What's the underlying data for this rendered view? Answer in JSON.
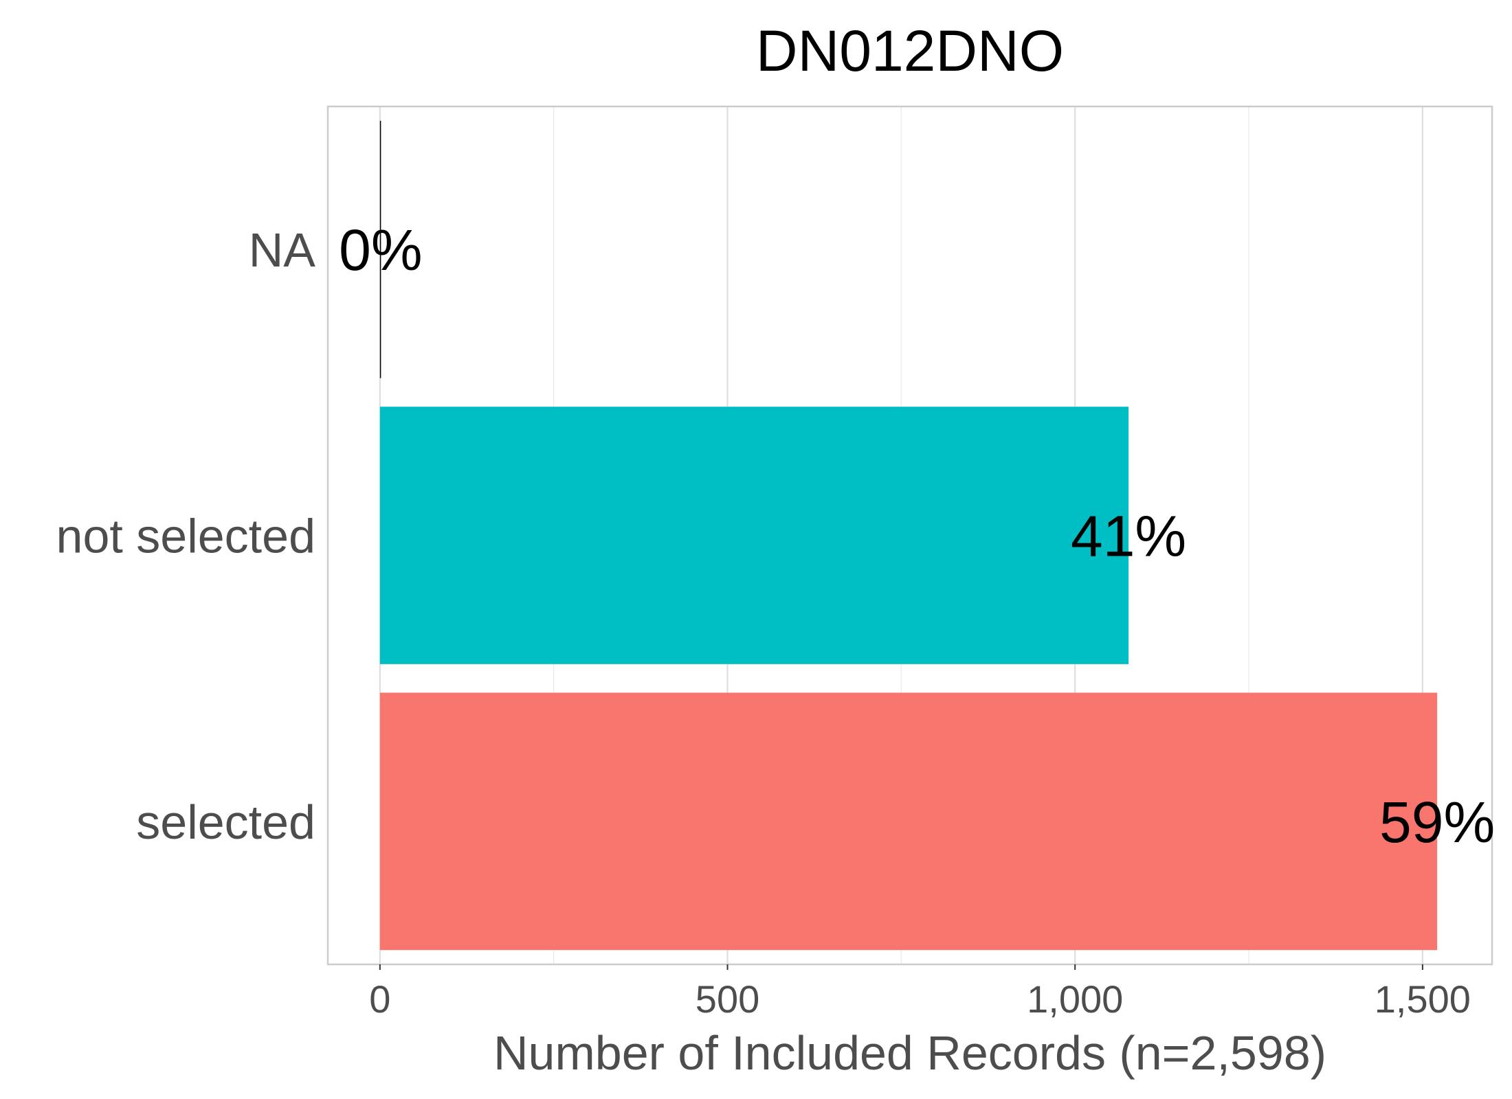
{
  "chart_data": {
    "type": "bar",
    "orientation": "horizontal",
    "title": "DN012DNO",
    "xlabel": "Number of Included Records (n=2,598)",
    "ylabel": "",
    "categories": [
      "NA",
      "not selected",
      "selected"
    ],
    "values": [
      1,
      1077,
      1521
    ],
    "labels": [
      "0%",
      "41%",
      "59%"
    ],
    "colors": [
      "#000000",
      "#00BFC4",
      "#F8766D"
    ],
    "xlim": [
      -75,
      1600
    ],
    "xticks": [
      0,
      500,
      1000,
      1500
    ],
    "xtick_labels": [
      "0",
      "500",
      "1,000",
      "1,500"
    ],
    "grid": true,
    "legend": "none"
  }
}
